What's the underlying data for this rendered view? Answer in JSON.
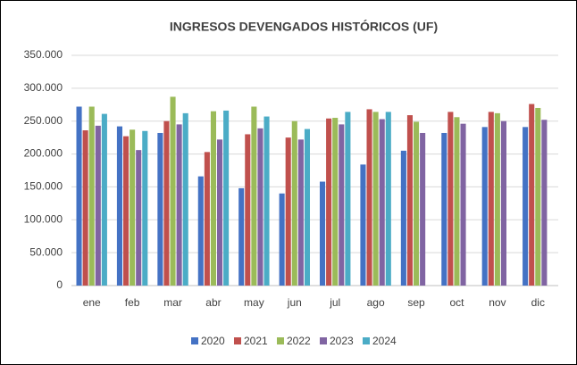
{
  "chart_data": {
    "type": "bar",
    "title": "INGRESOS DEVENGADOS HISTÓRICOS (UF)",
    "categories": [
      "ene",
      "feb",
      "mar",
      "abr",
      "may",
      "jun",
      "jul",
      "ago",
      "sep",
      "oct",
      "nov",
      "dic"
    ],
    "series": [
      {
        "name": "2020",
        "color": "#4472c4",
        "values": [
          272000,
          242000,
          232000,
          166000,
          148000,
          140000,
          158000,
          184000,
          205000,
          232000,
          241000,
          241000
        ]
      },
      {
        "name": "2021",
        "color": "#c0504d",
        "values": [
          236000,
          227000,
          250000,
          203000,
          230000,
          225000,
          254000,
          268000,
          259000,
          264000,
          264000,
          276000
        ]
      },
      {
        "name": "2022",
        "color": "#9bbb59",
        "values": [
          272000,
          237000,
          287000,
          265000,
          272000,
          250000,
          255000,
          264000,
          249000,
          256000,
          262000,
          270000
        ]
      },
      {
        "name": "2023",
        "color": "#8064a2",
        "values": [
          243000,
          206000,
          245000,
          222000,
          239000,
          222000,
          245000,
          253000,
          232000,
          246000,
          250000,
          252000
        ]
      },
      {
        "name": "2024",
        "color": "#4bacc6",
        "values": [
          261000,
          235000,
          262000,
          266000,
          257000,
          238000,
          264000,
          264000,
          null,
          null,
          null,
          null
        ]
      }
    ],
    "ylim": [
      0,
      350000
    ],
    "yticks": [
      0,
      {
        "value": 50000,
        "label": "50.000"
      },
      {
        "value": 100000,
        "label": "100.000"
      },
      {
        "value": 150000,
        "label": "150.000"
      },
      {
        "value": 200000,
        "label": "200.000"
      },
      {
        "value": 250000,
        "label": "250.000"
      },
      {
        "value": 300000,
        "label": "300.000"
      },
      {
        "value": 350000,
        "label": "350.000"
      }
    ],
    "grid": true,
    "legend": "bottom"
  }
}
